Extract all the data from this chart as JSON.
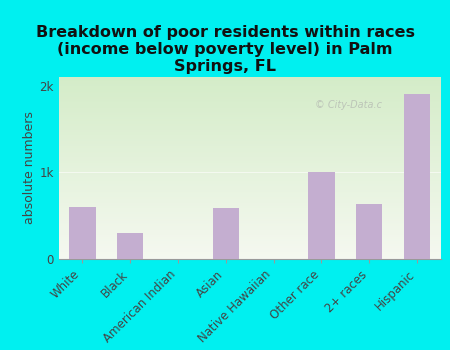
{
  "categories": [
    "White",
    "Black",
    "American Indian",
    "Asian",
    "Native Hawaiian",
    "Other race",
    "2+ races",
    "Hispanic"
  ],
  "values": [
    600,
    300,
    0,
    590,
    0,
    1000,
    640,
    1900
  ],
  "bar_color": "#c4aed0",
  "title": "Breakdown of poor residents within races\n(income below poverty level) in Palm\nSprings, FL",
  "ylabel": "absolute numbers",
  "ylim": [
    0,
    2100
  ],
  "ytick_labels": [
    "0",
    "1k",
    "2k"
  ],
  "ytick_values": [
    0,
    1000,
    2000
  ],
  "background_color": "#00f0f0",
  "plot_bg_top_color": "#d4ecc8",
  "plot_bg_bottom_color": "#f5f8f0",
  "title_fontsize": 11.5,
  "ylabel_fontsize": 9,
  "tick_fontsize": 8.5
}
